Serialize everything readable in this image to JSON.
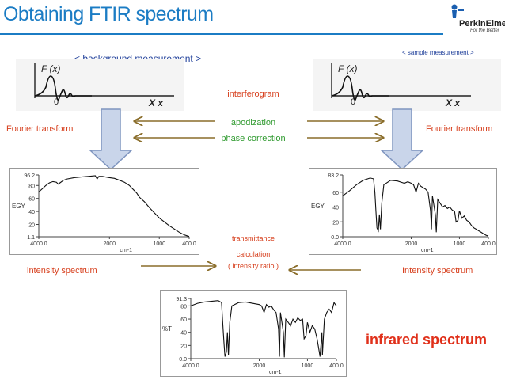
{
  "header": {
    "title": "Obtaining FTIR spectrum",
    "logo_name": "PerkinElmer",
    "logo_tagline": "For the Better"
  },
  "sections": {
    "background": "< background measurement >",
    "sample": "< sample measurement >"
  },
  "interferogram_axis": {
    "f_label": "F (x)",
    "zero_label": "0",
    "x_label": "X  x"
  },
  "center": {
    "interferogram": "interferogram",
    "apodization": "apodization",
    "phase_correction": "phase correction",
    "transmittance": "transmittance",
    "calculation": "calculation",
    "intensity_ratio": "(  intensity ratio  )"
  },
  "side_labels": {
    "fourier_left": "Fourier transform",
    "fourier_right": "Fourier transform",
    "intensity_left": "intensity spectrum",
    "intensity_right": "Intensity spectrum",
    "infrared": "infrared spectrum"
  },
  "colors": {
    "title": "#1b7cc4",
    "orange_text": "#d7401e",
    "green_text": "#2f9a2f",
    "blue_text": "#1f3f9a",
    "red_text": "#e0301a",
    "arrow": "#8a6d2a",
    "big_arrow_fill": "#c9d5ea",
    "big_arrow_stroke": "#7f95bf"
  },
  "chart_data": [
    {
      "type": "line",
      "name_hint": "background intensity spectrum",
      "ylabel": "EGY",
      "xlabel": "cm-1",
      "x_ticks": [
        "4000.0",
        "2000",
        "1000",
        "400.0"
      ],
      "y_ticks": [
        "1.1",
        "20",
        "40",
        "60",
        "80",
        "96.2"
      ],
      "ylim": [
        1.1,
        96.2
      ],
      "xlim": [
        4000,
        400
      ],
      "x": [
        4000,
        3900,
        3800,
        3700,
        3600,
        3500,
        3450,
        3400,
        3300,
        3200,
        3000,
        2800,
        2600,
        2400,
        2350,
        2300,
        2200,
        2000,
        1900,
        1800,
        1700,
        1600,
        1550,
        1500,
        1450,
        1400,
        1300,
        1200,
        1100,
        1000,
        900,
        800,
        700,
        600,
        500,
        400
      ],
      "y": [
        70,
        75,
        80,
        84,
        86,
        85,
        82,
        84,
        88,
        90,
        92,
        93,
        94,
        95,
        90,
        94,
        94,
        92,
        91,
        88,
        85,
        80,
        76,
        72,
        68,
        62,
        55,
        46,
        38,
        30,
        24,
        18,
        13,
        8,
        4,
        1.5
      ]
    },
    {
      "type": "line",
      "name_hint": "sample intensity spectrum",
      "ylabel": "EGY",
      "xlabel": "cm-1",
      "x_ticks": [
        "4000.0",
        "2000",
        "1000",
        "400.0"
      ],
      "y_ticks": [
        "0.0",
        "20",
        "40",
        "60",
        "83.2"
      ],
      "ylim": [
        0,
        83.2
      ],
      "xlim": [
        4000,
        400
      ],
      "x": [
        4000,
        3800,
        3600,
        3400,
        3200,
        3100,
        3060,
        3030,
        3000,
        2960,
        2930,
        2900,
        2860,
        2800,
        2600,
        2400,
        2200,
        2100,
        2000,
        1950,
        1900,
        1850,
        1800,
        1750,
        1700,
        1650,
        1600,
        1580,
        1560,
        1500,
        1480,
        1450,
        1400,
        1350,
        1300,
        1250,
        1200,
        1150,
        1100,
        1070,
        1030,
        1000,
        950,
        900,
        850,
        800,
        750,
        700,
        650,
        600,
        550,
        500,
        450,
        400
      ],
      "y": [
        55,
        62,
        70,
        76,
        79,
        78,
        60,
        35,
        12,
        8,
        30,
        10,
        45,
        70,
        76,
        75,
        72,
        74,
        72,
        70,
        60,
        72,
        68,
        66,
        64,
        60,
        35,
        10,
        55,
        30,
        6,
        50,
        45,
        40,
        42,
        38,
        40,
        36,
        34,
        20,
        22,
        35,
        25,
        28,
        22,
        20,
        15,
        12,
        10,
        8,
        6,
        4,
        2,
        1
      ]
    },
    {
      "type": "line",
      "name_hint": "infrared spectrum",
      "ylabel": "%T",
      "xlabel": "cm-1",
      "x_ticks": [
        "4000.0",
        "2000",
        "1000",
        "400.0"
      ],
      "y_ticks": [
        "0.0",
        "20",
        "40",
        "60",
        "80",
        "91.3"
      ],
      "ylim": [
        0,
        91.3
      ],
      "xlim": [
        4000,
        400
      ],
      "x": [
        4000,
        3800,
        3600,
        3400,
        3200,
        3100,
        3060,
        3030,
        3000,
        2960,
        2930,
        2900,
        2860,
        2800,
        2600,
        2400,
        2200,
        2000,
        1950,
        1900,
        1850,
        1800,
        1750,
        1700,
        1650,
        1600,
        1580,
        1560,
        1500,
        1480,
        1450,
        1400,
        1350,
        1300,
        1250,
        1200,
        1150,
        1100,
        1070,
        1030,
        1000,
        950,
        900,
        850,
        800,
        760,
        740,
        700,
        690,
        650,
        600,
        550,
        500,
        450,
        400
      ],
      "y": [
        80,
        84,
        86,
        87,
        88,
        85,
        50,
        25,
        3,
        10,
        40,
        5,
        55,
        80,
        85,
        86,
        84,
        82,
        80,
        70,
        82,
        78,
        80,
        74,
        70,
        45,
        3,
        70,
        40,
        2,
        60,
        55,
        50,
        60,
        55,
        62,
        58,
        60,
        30,
        35,
        55,
        40,
        50,
        45,
        30,
        12,
        3,
        40,
        5,
        60,
        70,
        75,
        70,
        85,
        80
      ]
    }
  ]
}
